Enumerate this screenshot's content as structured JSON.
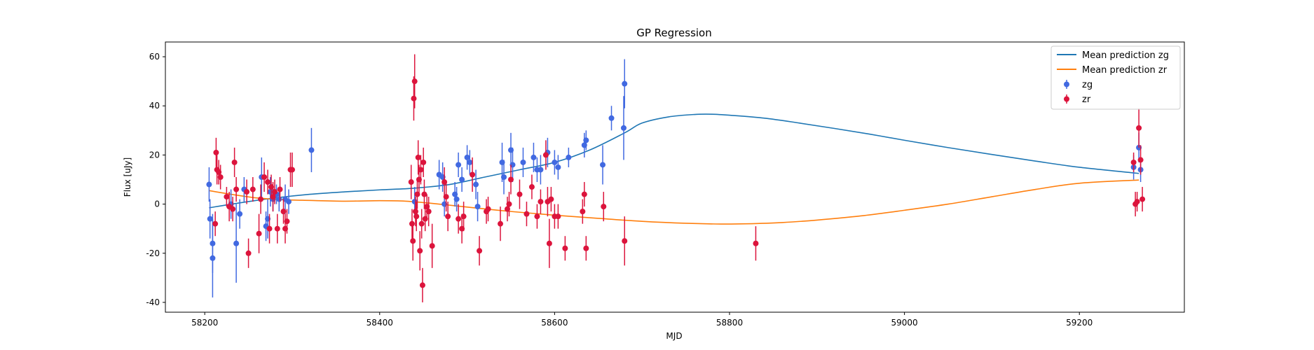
{
  "chart_data": {
    "type": "scatter",
    "title": "GP Regression",
    "xlabel": "MJD",
    "ylabel": "Flux [uJy]",
    "xlim": [
      58155,
      59320
    ],
    "ylim": [
      -44,
      66
    ],
    "xticks": [
      58200,
      58400,
      58600,
      58800,
      59000,
      59200
    ],
    "yticks": [
      -40,
      -20,
      0,
      20,
      40,
      60
    ],
    "grid": false,
    "legend_position": "top-right",
    "legend": [
      "Mean prediction zg",
      "Mean prediction zr",
      "zg",
      "zr"
    ],
    "colors": {
      "mean_zg": "#1f77b4",
      "mean_zr": "#ff7f0e",
      "zg": "#4169e1",
      "zr": "#dc143c"
    },
    "lines": [
      {
        "name": "Mean prediction zg",
        "color": "#1f77b4",
        "x": [
          58205,
          58240,
          58280,
          58320,
          58360,
          58400,
          58440,
          58480,
          58520,
          58560,
          58600,
          58640,
          58680,
          58700,
          58730,
          58760,
          58780,
          58800,
          58840,
          58880,
          58920,
          58960,
          59000,
          59050,
          59100,
          59150,
          59200,
          59268
        ],
        "y": [
          -1.5,
          0.5,
          2.5,
          4,
          5,
          5.8,
          6.5,
          8,
          11,
          14,
          17,
          22,
          29,
          33,
          35.5,
          36.5,
          36.6,
          36.2,
          35,
          33,
          30.8,
          28.5,
          26,
          23,
          20.2,
          17.5,
          15,
          12.5
        ]
      },
      {
        "name": "Mean prediction zr",
        "color": "#ff7f0e",
        "x": [
          58205,
          58230,
          58260,
          58290,
          58320,
          58360,
          58400,
          58430,
          58460,
          58500,
          58550,
          58600,
          58650,
          58700,
          58750,
          58790,
          58820,
          58860,
          58900,
          58950,
          59000,
          59050,
          59100,
          59150,
          59200,
          59268
        ],
        "y": [
          5.5,
          4,
          2.5,
          1.8,
          1.5,
          1.2,
          1.4,
          1.2,
          0.3,
          -1.2,
          -3,
          -4.5,
          -5.8,
          -7,
          -7.8,
          -8.1,
          -8,
          -7.5,
          -6.5,
          -4.8,
          -2.5,
          0,
          3,
          6,
          8.5,
          9.8
        ]
      }
    ],
    "series": [
      {
        "name": "zg",
        "color": "#4169e1",
        "points": [
          [
            58205,
            8,
            7
          ],
          [
            58206,
            -6,
            8
          ],
          [
            58209,
            -22,
            16
          ],
          [
            58209,
            -16,
            12
          ],
          [
            58230,
            0,
            6
          ],
          [
            58236,
            -16,
            16
          ],
          [
            58240,
            -4,
            6
          ],
          [
            58245,
            6,
            5
          ],
          [
            58265,
            11,
            8
          ],
          [
            58270,
            -9,
            6
          ],
          [
            58272,
            -6,
            8
          ],
          [
            58275,
            5,
            6
          ],
          [
            58278,
            2,
            5
          ],
          [
            58282,
            4,
            4
          ],
          [
            58285,
            2,
            5
          ],
          [
            58292,
            2,
            6
          ],
          [
            58296,
            1,
            5
          ],
          [
            58322,
            22,
            9
          ],
          [
            58440,
            1,
            6
          ],
          [
            58468,
            12,
            6
          ],
          [
            58472,
            11,
            6
          ],
          [
            58474,
            0,
            5
          ],
          [
            58486,
            4,
            5
          ],
          [
            58488,
            2,
            5
          ],
          [
            58490,
            16,
            5
          ],
          [
            58494,
            10,
            5
          ],
          [
            58500,
            19,
            5
          ],
          [
            58503,
            17,
            5
          ],
          [
            58510,
            8,
            6
          ],
          [
            58512,
            -1,
            6
          ],
          [
            58540,
            17,
            8
          ],
          [
            58542,
            11,
            7
          ],
          [
            58550,
            22,
            7
          ],
          [
            58552,
            16,
            7
          ],
          [
            58564,
            17,
            6
          ],
          [
            58576,
            19,
            6
          ],
          [
            58580,
            14,
            5
          ],
          [
            58584,
            14,
            6
          ],
          [
            58592,
            21,
            6
          ],
          [
            58600,
            17,
            5
          ],
          [
            58604,
            15,
            5
          ],
          [
            58616,
            19,
            4
          ],
          [
            58634,
            24,
            5
          ],
          [
            58636,
            26,
            4
          ],
          [
            58655,
            16,
            8
          ],
          [
            58665,
            35,
            5
          ],
          [
            58679,
            31,
            13
          ],
          [
            58680,
            49,
            10
          ],
          [
            59262,
            15,
            5
          ],
          [
            59268,
            23,
            6
          ],
          [
            59270,
            14,
            5
          ]
        ]
      },
      {
        "name": "zr",
        "color": "#dc143c",
        "points": [
          [
            58212,
            -8,
            5
          ],
          [
            58213,
            21,
            6
          ],
          [
            58214,
            14,
            6
          ],
          [
            58216,
            13,
            5
          ],
          [
            58218,
            11,
            5
          ],
          [
            58225,
            3,
            4
          ],
          [
            58228,
            -1,
            6
          ],
          [
            58232,
            -2,
            5
          ],
          [
            58234,
            17,
            6
          ],
          [
            58236,
            6,
            5
          ],
          [
            58248,
            5,
            5
          ],
          [
            58250,
            -20,
            6
          ],
          [
            58255,
            6,
            5
          ],
          [
            58262,
            -12,
            8
          ],
          [
            58264,
            2,
            6
          ],
          [
            58268,
            11,
            6
          ],
          [
            58272,
            9,
            5
          ],
          [
            58274,
            -10,
            6
          ],
          [
            58276,
            7,
            5
          ],
          [
            58278,
            3,
            6
          ],
          [
            58280,
            5,
            5
          ],
          [
            58283,
            -10,
            6
          ],
          [
            58286,
            6,
            5
          ],
          [
            58290,
            -3,
            5
          ],
          [
            58292,
            -10,
            6
          ],
          [
            58294,
            -7,
            5
          ],
          [
            58298,
            14,
            7
          ],
          [
            58300,
            14,
            7
          ],
          [
            58436,
            9,
            7
          ],
          [
            58437,
            -8,
            6
          ],
          [
            58438,
            -15,
            8
          ],
          [
            58439,
            43,
            9
          ],
          [
            58440,
            50,
            11
          ],
          [
            58441,
            -3,
            6
          ],
          [
            58442,
            -5,
            6
          ],
          [
            58443,
            4,
            6
          ],
          [
            58444,
            19,
            7
          ],
          [
            58445,
            10,
            6
          ],
          [
            58446,
            -19,
            8
          ],
          [
            58447,
            14,
            6
          ],
          [
            58448,
            -8,
            6
          ],
          [
            58449,
            -33,
            7
          ],
          [
            58450,
            17,
            6
          ],
          [
            58451,
            4,
            6
          ],
          [
            58452,
            -6,
            5
          ],
          [
            58454,
            -1,
            5
          ],
          [
            58456,
            -3,
            6
          ],
          [
            58460,
            -17,
            9
          ],
          [
            58474,
            9,
            6
          ],
          [
            58476,
            3,
            6
          ],
          [
            58478,
            -5,
            6
          ],
          [
            58490,
            -6,
            6
          ],
          [
            58494,
            -10,
            6
          ],
          [
            58496,
            -5,
            6
          ],
          [
            58506,
            12,
            7
          ],
          [
            58514,
            -19,
            6
          ],
          [
            58522,
            -3,
            5
          ],
          [
            58524,
            -2,
            5
          ],
          [
            58538,
            -8,
            7
          ],
          [
            58546,
            -2,
            5
          ],
          [
            58548,
            0,
            5
          ],
          [
            58550,
            10,
            6
          ],
          [
            58560,
            4,
            6
          ],
          [
            58568,
            -4,
            5
          ],
          [
            58574,
            7,
            5
          ],
          [
            58580,
            -5,
            5
          ],
          [
            58584,
            1,
            5
          ],
          [
            58590,
            20,
            6
          ],
          [
            58592,
            1,
            6
          ],
          [
            58594,
            -16,
            10
          ],
          [
            58596,
            2,
            5
          ],
          [
            58600,
            -5,
            5
          ],
          [
            58604,
            -5,
            5
          ],
          [
            58612,
            -18,
            5
          ],
          [
            58632,
            -3,
            5
          ],
          [
            58634,
            4,
            5
          ],
          [
            58636,
            -18,
            5
          ],
          [
            58656,
            -1,
            6
          ],
          [
            58680,
            -15,
            10
          ],
          [
            58830,
            -16,
            7
          ],
          [
            59262,
            17,
            4
          ],
          [
            59264,
            0,
            5
          ],
          [
            59266,
            1,
            4
          ],
          [
            59268,
            31,
            8
          ],
          [
            59270,
            18,
            6
          ],
          [
            59272,
            2,
            5
          ]
        ]
      }
    ]
  }
}
